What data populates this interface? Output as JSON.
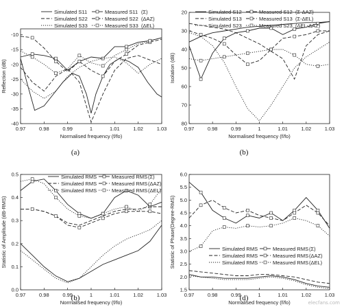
{
  "watermark": "elecfans.com",
  "chart_data": [
    {
      "type": "line",
      "caption": "(a)",
      "xlabel": "Normalised frequency (f/fo)",
      "ylabel": "Reflection (dB)",
      "xlim": [
        0.97,
        1.03
      ],
      "ylim": [
        -40,
        -8
      ],
      "xticks": [
        "0.97",
        "0.98",
        "0.99",
        "1",
        "1.01",
        "1.02",
        "1.03"
      ],
      "yticks": [
        "-10",
        "-15",
        "-20",
        "-25",
        "-30",
        "-35",
        "-40"
      ],
      "legend_rows": [
        [
          "Simulated S11",
          "Measured S11",
          "(Σ)"
        ],
        [
          "Simulated S22",
          "Measured S22",
          "(ΔAZ)"
        ],
        [
          "Simulated S33",
          "Measured S33",
          "(ΔEL)"
        ]
      ],
      "series": [
        {
          "name": "Simulated S11",
          "style": "solid",
          "marker": false,
          "x": [
            0.97,
            0.973,
            0.976,
            0.98,
            0.984,
            0.988,
            0.992,
            0.995,
            0.998,
            1.0,
            1.002,
            1.005,
            1.008,
            1.012,
            1.016,
            1.02,
            1.024,
            1.028,
            1.03
          ],
          "y": [
            -18,
            -27,
            -35.5,
            -34,
            -30,
            -26,
            -23,
            -24,
            -30,
            -36.5,
            -30,
            -24,
            -20,
            -18,
            -19,
            -21,
            -26,
            -30,
            -31
          ]
        },
        {
          "name": "Measured S11",
          "style": "solid",
          "marker": true,
          "x": [
            0.97,
            0.975,
            0.98,
            0.985,
            0.99,
            0.995,
            1.0,
            1.005,
            1.01,
            1.015,
            1.02,
            1.025,
            1.03
          ],
          "y": [
            -17.5,
            -16.5,
            -17,
            -18,
            -22,
            -19,
            -17.5,
            -18,
            -14,
            -14,
            -12.5,
            -12,
            -11
          ]
        },
        {
          "name": "Simulated S22",
          "style": "dashed",
          "marker": false,
          "x": [
            0.97,
            0.975,
            0.98,
            0.985,
            0.99,
            0.995,
            1.0,
            1.005,
            1.01,
            1.015,
            1.02,
            1.025,
            1.03
          ],
          "y": [
            -21,
            -26,
            -29,
            -24,
            -21.5,
            -26,
            -39.5,
            -30,
            -22,
            -18,
            -17,
            -18.5,
            -20
          ]
        },
        {
          "name": "Measured S22",
          "style": "dashed",
          "marker": true,
          "x": [
            0.97,
            0.975,
            0.98,
            0.985,
            0.99,
            0.995,
            1.0,
            1.005,
            1.01,
            1.015,
            1.02,
            1.025,
            1.03
          ],
          "y": [
            -10.5,
            -11,
            -14.5,
            -19,
            -22.5,
            -19,
            -22,
            -24,
            -19,
            -16.5,
            -13.5,
            -12.5,
            -11.5
          ]
        },
        {
          "name": "Simulated S33",
          "style": "dotted",
          "marker": false,
          "x": [
            0.97,
            0.975,
            0.98,
            0.985,
            0.99,
            0.995,
            1.0,
            1.005,
            1.01,
            1.015,
            1.02,
            1.025,
            1.03
          ],
          "y": [
            -25,
            -29,
            -31.5,
            -29,
            -24,
            -21,
            -19,
            -18,
            -17.5,
            -19.5,
            -23,
            -20,
            -18
          ]
        },
        {
          "name": "Measured S33",
          "style": "dotted",
          "marker": true,
          "x": [
            0.97,
            0.975,
            0.98,
            0.985,
            0.99,
            0.995,
            1.0,
            1.005,
            1.01,
            1.015,
            1.02,
            1.025,
            1.03
          ],
          "y": [
            -15.5,
            -17.5,
            -20,
            -23,
            -21.5,
            -17,
            -19.5,
            -20.5,
            -17,
            -15,
            -13,
            -12,
            -11
          ]
        }
      ]
    },
    {
      "type": "line",
      "caption": "(b)",
      "xlabel": "Normalised frequency (f/fo)",
      "ylabel": "Isolation (dB)",
      "xlim": [
        0.97,
        1.03
      ],
      "ylim": [
        80,
        20
      ],
      "y_inverted": true,
      "xticks": [
        "0.97",
        "0.98",
        "0.99",
        "1",
        "1.01",
        "1.02",
        "1.03"
      ],
      "yticks": [
        "20",
        "30",
        "40",
        "50",
        "60",
        "70",
        "80"
      ],
      "legend_rows": [
        [
          "Simulated S12",
          "Measured S12",
          "(Σ-ΔAZ)"
        ],
        [
          "Simulated S13",
          "Measured S13",
          "(Σ-ΔEL)"
        ],
        [
          "Simulated S23",
          "Measured S23",
          "(ΔEL-ΔAZ)"
        ]
      ],
      "series": [
        {
          "name": "Simulated S12",
          "style": "solid",
          "marker": false,
          "x": [
            0.97,
            0.975,
            0.98,
            0.985,
            0.99,
            0.995,
            1.0,
            1.005,
            1.01,
            1.015,
            1.02,
            1.025,
            1.03
          ],
          "y": [
            36,
            33,
            31,
            30,
            29,
            28,
            27.5,
            27,
            26.5,
            26,
            25.5,
            25.5,
            25
          ]
        },
        {
          "name": "Measured S12",
          "style": "solid",
          "marker": true,
          "x": [
            0.97,
            0.975,
            0.98,
            0.985,
            0.99,
            0.995,
            1.0,
            1.005,
            1.01,
            1.015,
            1.02,
            1.025,
            1.03
          ],
          "y": [
            38,
            56,
            42,
            34,
            31,
            30,
            28.5,
            28.5,
            32,
            29,
            28,
            26,
            25
          ]
        },
        {
          "name": "Simulated S13",
          "style": "dashed",
          "marker": false,
          "x": [
            0.97,
            0.975,
            0.98,
            0.985,
            0.99,
            0.995,
            1.0,
            1.005,
            1.01,
            1.015,
            1.02,
            1.025,
            1.03
          ],
          "y": [
            26,
            27,
            28,
            29,
            31,
            34,
            37,
            41,
            45,
            56,
            38,
            32,
            30
          ]
        },
        {
          "name": "Measured S13",
          "style": "dashed",
          "marker": true,
          "x": [
            0.97,
            0.975,
            0.98,
            0.985,
            0.99,
            0.995,
            1.0,
            1.005,
            1.01,
            1.015,
            1.02,
            1.025,
            1.03
          ],
          "y": [
            30,
            32,
            34,
            37,
            43,
            48,
            46,
            40,
            34,
            33,
            32,
            30,
            30
          ]
        },
        {
          "name": "Simulated S23",
          "style": "dotted",
          "marker": false,
          "x": [
            0.97,
            0.975,
            0.98,
            0.985,
            0.99,
            0.995,
            1.0,
            1.005,
            1.01,
            1.015,
            1.02,
            1.025,
            1.03
          ],
          "y": [
            31,
            33,
            38,
            47,
            60,
            72,
            78.5,
            70,
            60,
            50,
            44,
            40,
            36
          ]
        },
        {
          "name": "Measured S23",
          "style": "dotted",
          "marker": true,
          "x": [
            0.97,
            0.975,
            0.98,
            0.985,
            0.99,
            0.995,
            1.0,
            1.005,
            1.01,
            1.015,
            1.02,
            1.025,
            1.03
          ],
          "y": [
            45,
            46,
            45,
            44,
            43,
            42,
            41,
            40,
            40,
            43,
            48,
            49,
            48
          ]
        }
      ]
    },
    {
      "type": "line",
      "caption": "(b)",
      "xlabel": "Normalised frequency (f/fo)",
      "ylabel": "Statistic of Amplitude (dB-RMS)",
      "xlim": [
        0.97,
        1.03
      ],
      "ylim": [
        0.0,
        0.5
      ],
      "xticks": [
        "0.97",
        "0.98",
        "0.99",
        "1",
        "1.01",
        "1.02",
        "1.03"
      ],
      "yticks": [
        "0.0",
        "0.1",
        "0.2",
        "0.3",
        "0.4",
        "0.5"
      ],
      "legend_rows": [
        [
          "Simulated RMS",
          "Measured RMS",
          "(Σ)"
        ],
        [
          "Simulated RMS",
          "Measured RMS",
          "(ΔAZ)"
        ],
        [
          "Simulated RMS",
          "Measured RMS",
          "(ΔEL)"
        ]
      ],
      "series": [
        {
          "name": "Simulated RMS",
          "style": "solid",
          "marker": false,
          "x": [
            0.97,
            0.975,
            0.98,
            0.985,
            0.99,
            0.995,
            1.0,
            1.005,
            1.01,
            1.015,
            1.02,
            1.025,
            1.03
          ],
          "y": [
            0.2,
            0.15,
            0.1,
            0.06,
            0.035,
            0.05,
            0.08,
            0.11,
            0.13,
            0.15,
            0.17,
            0.21,
            0.28
          ]
        },
        {
          "name": "Measured RMS",
          "style": "solid",
          "marker": true,
          "x": [
            0.97,
            0.975,
            0.98,
            0.985,
            0.99,
            0.995,
            1.0,
            1.005,
            1.01,
            1.015,
            1.02,
            1.025,
            1.03
          ],
          "y": [
            0.43,
            0.47,
            0.48,
            0.43,
            0.37,
            0.33,
            0.31,
            0.33,
            0.4,
            0.43,
            0.41,
            0.36,
            0.38
          ]
        },
        {
          "name": "Simulated RMS",
          "style": "dashed",
          "marker": false,
          "x": [
            0.97,
            0.975,
            0.98,
            0.985,
            0.99,
            0.995,
            1.0,
            1.005,
            1.01,
            1.015,
            1.02,
            1.025,
            1.03
          ],
          "y": [
            0.35,
            0.35,
            0.34,
            0.32,
            0.29,
            0.28,
            0.3,
            0.32,
            0.34,
            0.35,
            0.35,
            0.36,
            0.36
          ]
        },
        {
          "name": "Measured RMS",
          "style": "dashed",
          "marker": true,
          "x": [
            0.97,
            0.975,
            0.98,
            0.985,
            0.99,
            0.995,
            1.0,
            1.005,
            1.01,
            1.015,
            1.02,
            1.025,
            1.03
          ],
          "y": [
            0.35,
            0.35,
            0.34,
            0.32,
            0.28,
            0.27,
            0.29,
            0.31,
            0.33,
            0.34,
            0.34,
            0.34,
            0.33
          ]
        },
        {
          "name": "Simulated RMS",
          "style": "dotted",
          "marker": false,
          "x": [
            0.97,
            0.975,
            0.98,
            0.985,
            0.99,
            0.995,
            1.0,
            1.005,
            1.01,
            1.015,
            1.02,
            1.025,
            1.03
          ],
          "y": [
            0.17,
            0.13,
            0.09,
            0.05,
            0.03,
            0.05,
            0.1,
            0.15,
            0.19,
            0.22,
            0.24,
            0.26,
            0.3
          ]
        },
        {
          "name": "Measured RMS",
          "style": "dotted",
          "marker": true,
          "x": [
            0.97,
            0.975,
            0.98,
            0.985,
            0.99,
            0.995,
            1.0,
            1.005,
            1.01,
            1.015,
            1.02,
            1.025,
            1.03
          ],
          "y": [
            0.47,
            0.48,
            0.46,
            0.4,
            0.35,
            0.32,
            0.31,
            0.33,
            0.35,
            0.36,
            0.34,
            0.37,
            0.44
          ]
        }
      ]
    },
    {
      "type": "line",
      "caption": "(d)",
      "xlabel": "Normalised frequency (f/fo)",
      "ylabel": "Statistic of Phase(Degree-RMS)",
      "xlim": [
        0.97,
        1.03
      ],
      "ylim": [
        1.5,
        6.0
      ],
      "xticks": [
        "0.97",
        "0.98",
        "0.99",
        "1",
        "1.01",
        "1.02",
        "1.03"
      ],
      "yticks": [
        "1.5",
        "2.0",
        "2.5",
        "3.0",
        "3.5",
        "4.0",
        "4.5",
        "5.0",
        "5.5",
        "6.0"
      ],
      "legend_rows": [
        [
          "Simulated RMS",
          "Measured RMS",
          "(Σ)"
        ],
        [
          "Simulated RMS",
          "Measured RMS",
          "(ΔAZ)"
        ],
        [
          "Simulated RMS",
          "Measured RMS",
          "(ΔEL)"
        ]
      ],
      "series": [
        {
          "name": "Simulated RMS",
          "style": "solid",
          "marker": false,
          "x": [
            0.97,
            0.975,
            0.98,
            0.985,
            0.99,
            0.995,
            1.0,
            1.005,
            1.01,
            1.015,
            1.02,
            1.025,
            1.03
          ],
          "y": [
            2.1,
            2.0,
            2.0,
            1.95,
            1.95,
            1.95,
            2.0,
            2.05,
            2.0,
            1.9,
            1.75,
            1.65,
            1.6
          ]
        },
        {
          "name": "Measured RMS",
          "style": "solid",
          "marker": true,
          "x": [
            0.97,
            0.975,
            0.98,
            0.985,
            0.99,
            0.995,
            1.0,
            1.005,
            1.01,
            1.015,
            1.02,
            1.025,
            1.03
          ],
          "y": [
            5.7,
            5.3,
            4.6,
            4.3,
            4.1,
            4.4,
            4.3,
            4.5,
            4.2,
            4.6,
            5.1,
            4.6,
            3.9
          ]
        },
        {
          "name": "Simulated RMS",
          "style": "dashed",
          "marker": false,
          "x": [
            0.97,
            0.975,
            0.98,
            0.985,
            0.99,
            0.995,
            1.0,
            1.005,
            1.01,
            1.015,
            1.02,
            1.025,
            1.03
          ],
          "y": [
            2.25,
            2.2,
            2.15,
            2.1,
            2.05,
            2.05,
            2.1,
            2.1,
            2.05,
            2.0,
            1.9,
            1.8,
            1.75
          ]
        },
        {
          "name": "Measured RMS",
          "style": "dashed",
          "marker": true,
          "x": [
            0.97,
            0.975,
            0.98,
            0.985,
            0.99,
            0.995,
            1.0,
            1.005,
            1.01,
            1.015,
            1.02,
            1.025,
            1.03
          ],
          "y": [
            4.3,
            4.8,
            5.0,
            4.7,
            4.5,
            4.6,
            4.4,
            4.3,
            4.2,
            4.5,
            4.8,
            4.5,
            4.0
          ]
        },
        {
          "name": "Simulated RMS",
          "style": "dotted",
          "marker": false,
          "x": [
            0.97,
            0.975,
            0.98,
            0.985,
            0.99,
            0.995,
            1.0,
            1.005,
            1.01,
            1.015,
            1.02,
            1.025,
            1.03
          ],
          "y": [
            2.05,
            2.0,
            1.95,
            1.9,
            1.9,
            1.9,
            1.95,
            2.0,
            1.95,
            1.85,
            1.7,
            1.6,
            1.55
          ]
        },
        {
          "name": "Measured RMS",
          "style": "dotted",
          "marker": true,
          "x": [
            0.97,
            0.975,
            0.98,
            0.985,
            0.99,
            0.995,
            1.0,
            1.005,
            1.01,
            1.015,
            1.02,
            1.025,
            1.03
          ],
          "y": [
            3.0,
            3.2,
            3.8,
            3.95,
            3.9,
            4.0,
            3.95,
            4.0,
            4.1,
            4.3,
            4.2,
            4.0,
            3.6
          ]
        }
      ]
    }
  ]
}
